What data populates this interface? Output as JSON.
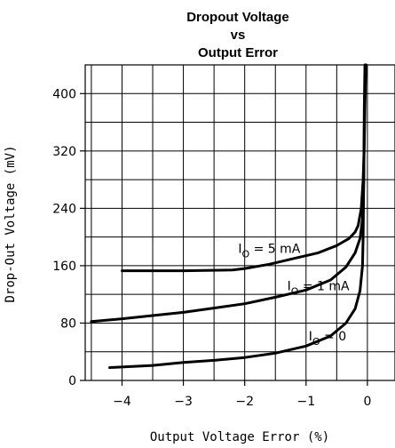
{
  "chart_data": {
    "type": "line",
    "title_lines": [
      "Dropout Voltage",
      "vs",
      "Output Error"
    ],
    "xlabel": "Output Voltage Error (%)",
    "ylabel": "Drop-Out Voltage (mV)",
    "xlim": [
      -4.6,
      0.45
    ],
    "ylim": [
      0,
      440
    ],
    "x_ticks": [
      -4,
      -3,
      -2,
      -1,
      0
    ],
    "x_tick_labels": [
      "−4",
      "−3",
      "−2",
      "−1",
      "0"
    ],
    "y_ticks": [
      0,
      80,
      160,
      240,
      320,
      400
    ],
    "y_tick_labels": [
      "0",
      "80",
      "160",
      "240",
      "320",
      "400"
    ],
    "grid": true,
    "series": [
      {
        "name": "I_O = 5 mA",
        "label_main": "I",
        "label_sub": "O",
        "label_rest": " = 5 mA",
        "x": [
          -4.0,
          -3.0,
          -2.2,
          -2.0,
          -1.6,
          -1.2,
          -0.8,
          -0.5,
          -0.3,
          -0.2,
          -0.15,
          -0.1,
          -0.07,
          -0.05,
          -0.04,
          -0.03,
          -0.02
        ],
        "y": [
          153,
          153,
          154,
          156,
          162,
          170,
          178,
          188,
          198,
          207,
          216,
          240,
          280,
          330,
          380,
          420,
          440
        ]
      },
      {
        "name": "I_O = 1 mA",
        "label_main": "I",
        "label_sub": "O",
        "label_rest": " = 1 mA",
        "x": [
          -4.5,
          -4.0,
          -3.0,
          -2.0,
          -1.5,
          -1.0,
          -0.6,
          -0.35,
          -0.2,
          -0.12,
          -0.08,
          -0.06,
          -0.05,
          -0.04,
          -0.03
        ],
        "y": [
          82,
          86,
          95,
          107,
          116,
          126,
          140,
          158,
          178,
          198,
          225,
          280,
          350,
          410,
          440
        ]
      },
      {
        "name": "I_O = 0",
        "label_main": "I",
        "label_sub": "O",
        "label_rest": " = 0",
        "x": [
          -4.2,
          -3.5,
          -3.0,
          -2.5,
          -2.0,
          -1.5,
          -1.0,
          -0.6,
          -0.35,
          -0.2,
          -0.12,
          -0.08,
          -0.07,
          -0.06,
          -0.05,
          -0.04
        ],
        "y": [
          18,
          21,
          25,
          28,
          32,
          38,
          48,
          62,
          80,
          100,
          125,
          160,
          200,
          280,
          380,
          440
        ]
      }
    ],
    "label_positions_data": [
      {
        "x": -1.6,
        "y": 178
      },
      {
        "x": -0.8,
        "y": 126
      },
      {
        "x": -0.65,
        "y": 56
      }
    ]
  }
}
